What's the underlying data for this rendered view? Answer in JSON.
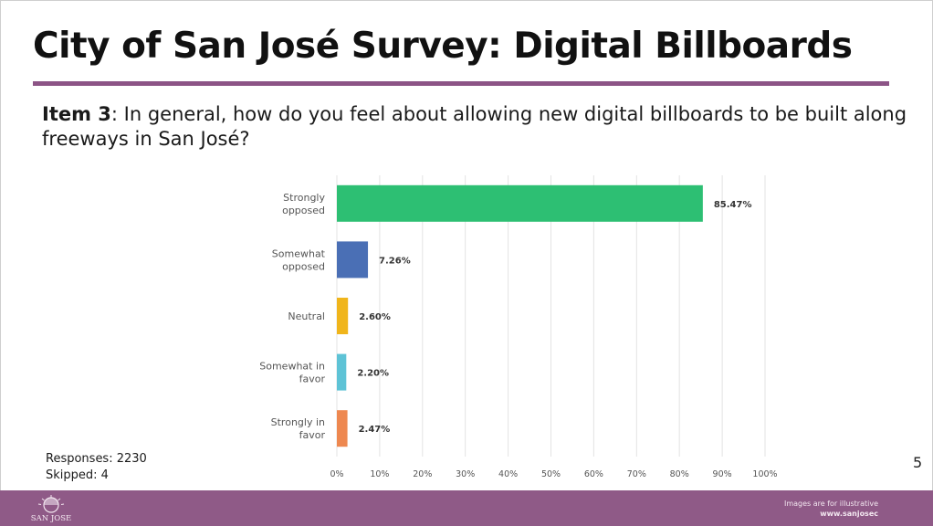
{
  "slide": {
    "title": "City of San José Survey: Digital Billboards",
    "question_label": "Item 3",
    "question_text": ": In general, how do you feel about allowing new digital billboards to be built along freeways in San José?",
    "responses": "Responses: 2230",
    "skipped": "Skipped: 4",
    "page_number": "5",
    "footer_note": "Images are for illustrative",
    "footer_url": "www.sanjosec",
    "logo_text": "SAN JOSE"
  },
  "chart_data": {
    "type": "bar",
    "orientation": "horizontal",
    "categories": [
      [
        "Strongly",
        "opposed"
      ],
      [
        "Somewhat",
        "opposed"
      ],
      [
        "Neutral"
      ],
      [
        "Somewhat in",
        "favor"
      ],
      [
        "Strongly in",
        "favor"
      ]
    ],
    "values": [
      85.47,
      7.26,
      2.6,
      2.2,
      2.47
    ],
    "value_labels": [
      "85.47%",
      "7.26%",
      "2.60%",
      "2.20%",
      "2.47%"
    ],
    "colors": [
      "#2dbf73",
      "#4a6fb5",
      "#f0b51b",
      "#5ec3d6",
      "#ee8850"
    ],
    "xlim": [
      0,
      100
    ],
    "xticks": [
      0,
      10,
      20,
      30,
      40,
      50,
      60,
      70,
      80,
      90,
      100
    ],
    "xtick_labels": [
      "0%",
      "10%",
      "20%",
      "30%",
      "40%",
      "50%",
      "60%",
      "70%",
      "80%",
      "90%",
      "100%"
    ],
    "grid": true,
    "legend": "none"
  }
}
